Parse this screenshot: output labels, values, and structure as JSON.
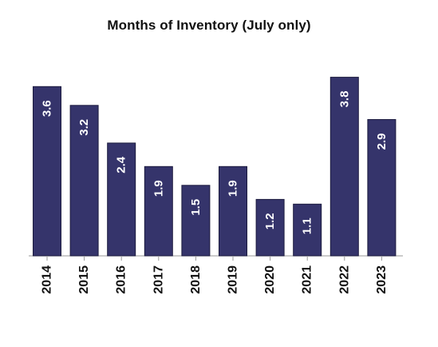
{
  "chart_data": {
    "type": "bar",
    "title": "Months of Inventory (July only)",
    "categories": [
      "2014",
      "2015",
      "2016",
      "2017",
      "2018",
      "2019",
      "2020",
      "2021",
      "2022",
      "2023"
    ],
    "values": [
      3.6,
      3.2,
      2.4,
      1.9,
      1.5,
      1.9,
      1.2,
      1.1,
      3.8,
      2.9
    ],
    "data_labels": [
      "3.6",
      "3.2",
      "2.4",
      "1.9",
      "1.5",
      "1.9",
      "1.2",
      "1.1",
      "3.8",
      "2.9"
    ],
    "xlabel": "",
    "ylabel": "",
    "ylim": [
      0,
      4
    ],
    "grid": false,
    "legend": "none",
    "bar_color": "#35346b",
    "label_color": "#ffffff",
    "tick_label_orientation": "vertical",
    "data_label_orientation": "vertical"
  }
}
